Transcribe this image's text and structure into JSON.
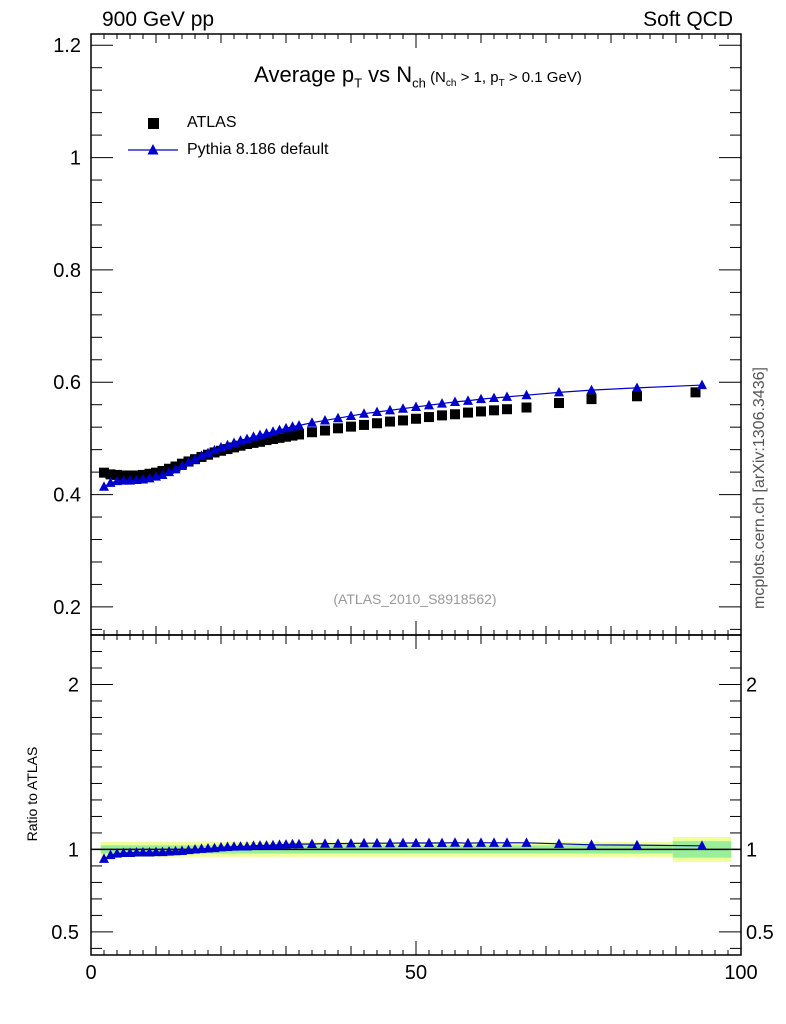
{
  "header": {
    "left": "900 GeV pp",
    "right": "Soft QCD"
  },
  "side_label": "mcplots.cern.ch [arXiv:1306.3436]",
  "analysis_id": "(ATLAS_2010_S8918562)",
  "colors": {
    "data": "#000000",
    "mc": "#0000cc",
    "band_outer": "#eeff99",
    "band_inner": "#99ee99"
  },
  "chart_data": [
    {
      "type": "scatter",
      "title_parts": {
        "main": "Average p",
        "main_sub": "T",
        "vs": " vs N",
        "vs_sub": "ch",
        "cond_open": " (N",
        "cond_sub1": "ch",
        "cond_mid": " > 1, p",
        "cond_sub2": "T",
        "cond_close": " > 0.1 GeV)"
      },
      "xlim": [
        0,
        100
      ],
      "ylim": [
        0.15,
        1.22
      ],
      "yticks": [
        "0.2",
        "0.4",
        "0.6",
        "0.8",
        "1",
        "1.2"
      ],
      "ytick_values": [
        0.2,
        0.4,
        0.6,
        0.8,
        1.0,
        1.2
      ],
      "legend": {
        "position": "top-left",
        "entries": [
          "ATLAS",
          "Pythia 8.186 default"
        ]
      },
      "series": [
        {
          "name": "ATLAS",
          "marker": "square",
          "x": [
            2,
            3,
            4,
            5,
            6,
            7,
            8,
            9,
            10,
            11,
            12,
            13,
            14,
            15,
            16,
            17,
            18,
            19,
            20,
            21,
            22,
            23,
            24,
            25,
            26,
            27,
            28,
            29,
            30,
            31,
            32,
            34,
            36,
            38,
            40,
            42,
            44,
            46,
            48,
            50,
            52,
            54,
            56,
            58,
            60,
            62,
            64,
            67,
            72,
            77,
            84,
            93
          ],
          "y": [
            0.439,
            0.436,
            0.435,
            0.434,
            0.434,
            0.434,
            0.435,
            0.437,
            0.439,
            0.442,
            0.446,
            0.45,
            0.455,
            0.459,
            0.463,
            0.467,
            0.471,
            0.475,
            0.478,
            0.481,
            0.484,
            0.487,
            0.49,
            0.492,
            0.494,
            0.497,
            0.499,
            0.501,
            0.503,
            0.505,
            0.507,
            0.511,
            0.514,
            0.518,
            0.521,
            0.524,
            0.527,
            0.53,
            0.532,
            0.535,
            0.538,
            0.541,
            0.543,
            0.546,
            0.548,
            0.55,
            0.552,
            0.555,
            0.563,
            0.57,
            0.575,
            0.582
          ]
        },
        {
          "name": "Pythia 8.186 default",
          "marker": "triangle",
          "x": [
            2,
            3,
            4,
            5,
            6,
            7,
            8,
            9,
            10,
            11,
            12,
            13,
            14,
            15,
            16,
            17,
            18,
            19,
            20,
            21,
            22,
            23,
            24,
            25,
            26,
            27,
            28,
            29,
            30,
            31,
            32,
            34,
            36,
            38,
            40,
            42,
            44,
            46,
            48,
            50,
            52,
            54,
            56,
            58,
            60,
            62,
            64,
            67,
            72,
            77,
            84,
            94
          ],
          "y": [
            0.414,
            0.421,
            0.424,
            0.425,
            0.425,
            0.426,
            0.427,
            0.429,
            0.432,
            0.435,
            0.44,
            0.445,
            0.451,
            0.457,
            0.463,
            0.469,
            0.474,
            0.479,
            0.484,
            0.488,
            0.492,
            0.496,
            0.499,
            0.503,
            0.506,
            0.509,
            0.512,
            0.515,
            0.518,
            0.521,
            0.523,
            0.528,
            0.532,
            0.536,
            0.54,
            0.544,
            0.547,
            0.55,
            0.553,
            0.556,
            0.559,
            0.562,
            0.565,
            0.567,
            0.57,
            0.572,
            0.574,
            0.577,
            0.582,
            0.586,
            0.59,
            0.595
          ]
        }
      ]
    },
    {
      "type": "line",
      "ylabel": "Ratio to ATLAS",
      "xlim": [
        0,
        100
      ],
      "ylim": [
        0.36,
        2.3
      ],
      "xticks": [
        "0",
        "50",
        "100"
      ],
      "xtick_values": [
        0,
        50,
        100
      ],
      "yticks": [
        "0.5",
        "1",
        "2"
      ],
      "ytick_values": [
        0.5,
        1,
        2
      ],
      "reference_line": 1.0,
      "band": {
        "outer_halfwidth": 0.045,
        "inner_halfwidth": 0.025,
        "outer_halfwidth_high_x": 0.075,
        "inner_halfwidth_high_x": 0.05
      },
      "series": [
        {
          "name": "Pythia 8.186 default",
          "marker": "triangle",
          "x": [
            2,
            3,
            4,
            5,
            6,
            7,
            8,
            9,
            10,
            11,
            12,
            13,
            14,
            15,
            16,
            17,
            18,
            19,
            20,
            21,
            22,
            23,
            24,
            25,
            26,
            27,
            28,
            29,
            30,
            31,
            32,
            34,
            36,
            38,
            40,
            42,
            44,
            46,
            48,
            50,
            52,
            54,
            56,
            58,
            60,
            62,
            64,
            67,
            72,
            77,
            84,
            94
          ],
          "y": [
            0.943,
            0.966,
            0.975,
            0.979,
            0.979,
            0.982,
            0.982,
            0.982,
            0.984,
            0.984,
            0.987,
            0.989,
            0.991,
            0.996,
            1.0,
            1.004,
            1.006,
            1.008,
            1.013,
            1.015,
            1.017,
            1.018,
            1.018,
            1.022,
            1.024,
            1.024,
            1.026,
            1.028,
            1.03,
            1.032,
            1.032,
            1.033,
            1.035,
            1.035,
            1.036,
            1.038,
            1.038,
            1.038,
            1.039,
            1.039,
            1.039,
            1.039,
            1.041,
            1.038,
            1.04,
            1.04,
            1.04,
            1.04,
            1.034,
            1.028,
            1.026,
            1.022
          ]
        }
      ]
    }
  ]
}
